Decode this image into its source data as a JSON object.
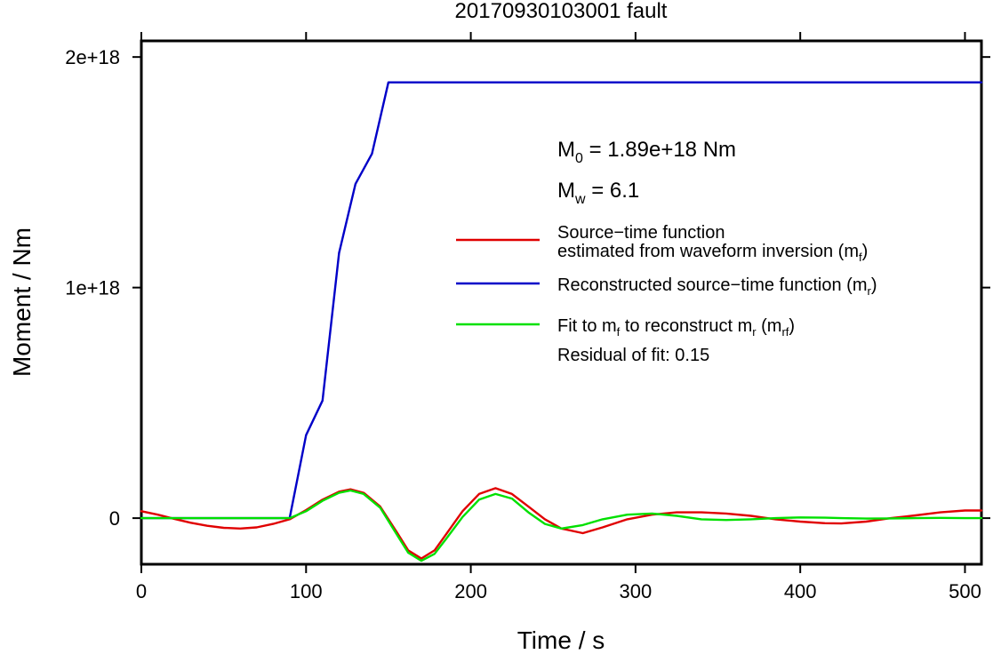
{
  "chart_data": {
    "type": "line",
    "title": "20170930103001 fault",
    "xlabel": "Time / s",
    "ylabel": "Moment / Nm",
    "xlim": [
      0,
      510
    ],
    "ylim": [
      -2e+17,
      2.07e+18
    ],
    "x_ticks": [
      0,
      100,
      200,
      300,
      400,
      500
    ],
    "x_tick_labels": [
      "0",
      "100",
      "200",
      "300",
      "400",
      "500"
    ],
    "y_ticks": [
      0,
      1e+18,
      2e+18
    ],
    "y_tick_labels": [
      "0",
      "1e+18",
      "2e+18"
    ],
    "grid": false,
    "legend_position": "right",
    "annotations": {
      "m0_base": "M",
      "m0_sub": "0",
      "m0_rest": " = 1.89e+18 Nm",
      "mw_base": "M",
      "mw_sub": "w",
      "mw_rest": " = 6.1",
      "residual": "Residual of fit: 0.15"
    },
    "legend": [
      {
        "line1": "Source−time function",
        "line2_base": "estimated from waveform inversion (m",
        "line2_sub": "f",
        "line2_end": ")",
        "color": "#e00000"
      },
      {
        "line1_base": "Reconstructed source−time function (m",
        "line1_sub": "r",
        "line1_end": ")",
        "color": "#0000c8"
      },
      {
        "p1": "Fit to m",
        "s1": "f",
        "p2": " to reconstruct m",
        "s2": "r",
        "p3": " (m",
        "s3": "rf",
        "p4": ")",
        "color": "#00e000"
      }
    ],
    "series": [
      {
        "color": "#e00000",
        "x": [
          0,
          10,
          20,
          30,
          40,
          50,
          60,
          70,
          80,
          90,
          100,
          110,
          120,
          127,
          135,
          145,
          155,
          162,
          170,
          178,
          185,
          195,
          205,
          215,
          225,
          235,
          245,
          255,
          268,
          280,
          295,
          310,
          325,
          340,
          355,
          370,
          385,
          400,
          415,
          425,
          440,
          455,
          470,
          485,
          500,
          510
        ],
        "y": [
          3e+16,
          1.5e+16,
          -3000000000000000.0,
          -2e+16,
          -3.3e+16,
          -4.2e+16,
          -4.5e+16,
          -4e+16,
          -2.5e+16,
          -5000000000000000.0,
          3.5e+16,
          8e+16,
          1.15e+17,
          1.25e+17,
          1.1e+17,
          5e+16,
          -6e+16,
          -1.4e+17,
          -1.75e+17,
          -1.4e+17,
          -7e+16,
          3e+16,
          1.05e+17,
          1.3e+17,
          1.05e+17,
          5e+16,
          -5000000000000000.0,
          -4.5e+16,
          -6.5e+16,
          -4e+16,
          -5000000000000000.0,
          1.5e+16,
          2.5e+16,
          2.5e+16,
          2e+16,
          1e+16,
          -5000000000000000.0,
          -1.5e+16,
          -2.2e+16,
          -2.3e+16,
          -1.5e+16,
          0,
          1.2e+16,
          2.5e+16,
          3.3e+16,
          3.3e+16
        ]
      },
      {
        "color": "#0000c8",
        "x": [
          0,
          90,
          100,
          110,
          120,
          130,
          140,
          150,
          510
        ],
        "y": [
          0,
          0,
          3.6e+17,
          5.1e+17,
          1.15e+18,
          1.45e+18,
          1.58e+18,
          1.89e+18,
          1.89e+18
        ]
      },
      {
        "color": "#00e000",
        "x": [
          0,
          10,
          20,
          30,
          40,
          50,
          60,
          70,
          80,
          90,
          100,
          110,
          120,
          127,
          135,
          145,
          155,
          162,
          170,
          178,
          185,
          195,
          205,
          215,
          225,
          235,
          245,
          255,
          268,
          280,
          295,
          310,
          325,
          340,
          355,
          370,
          385,
          400,
          415,
          425,
          440,
          455,
          470,
          485,
          500,
          510
        ],
        "y": [
          0,
          0,
          0,
          0,
          0,
          0,
          0,
          0,
          0,
          0,
          3e+16,
          7.5e+16,
          1.1e+17,
          1.2e+17,
          1.05e+17,
          4.5e+16,
          -7e+16,
          -1.5e+17,
          -1.85e+17,
          -1.55e+17,
          -9e+16,
          5000000000000000.0,
          8e+16,
          1.05e+17,
          8.5e+16,
          2.5e+16,
          -2.5e+16,
          -4.5e+16,
          -3e+16,
          -5000000000000000.0,
          1.5e+16,
          2e+16,
          1e+16,
          -5000000000000000.0,
          -8000000000000000.0,
          -5000000000000000.0,
          0,
          3000000000000000.0,
          2000000000000000.0,
          0,
          -2000000000000000.0,
          -1000000000000000.0,
          0,
          1000000000000000.0,
          0,
          0
        ]
      }
    ]
  }
}
